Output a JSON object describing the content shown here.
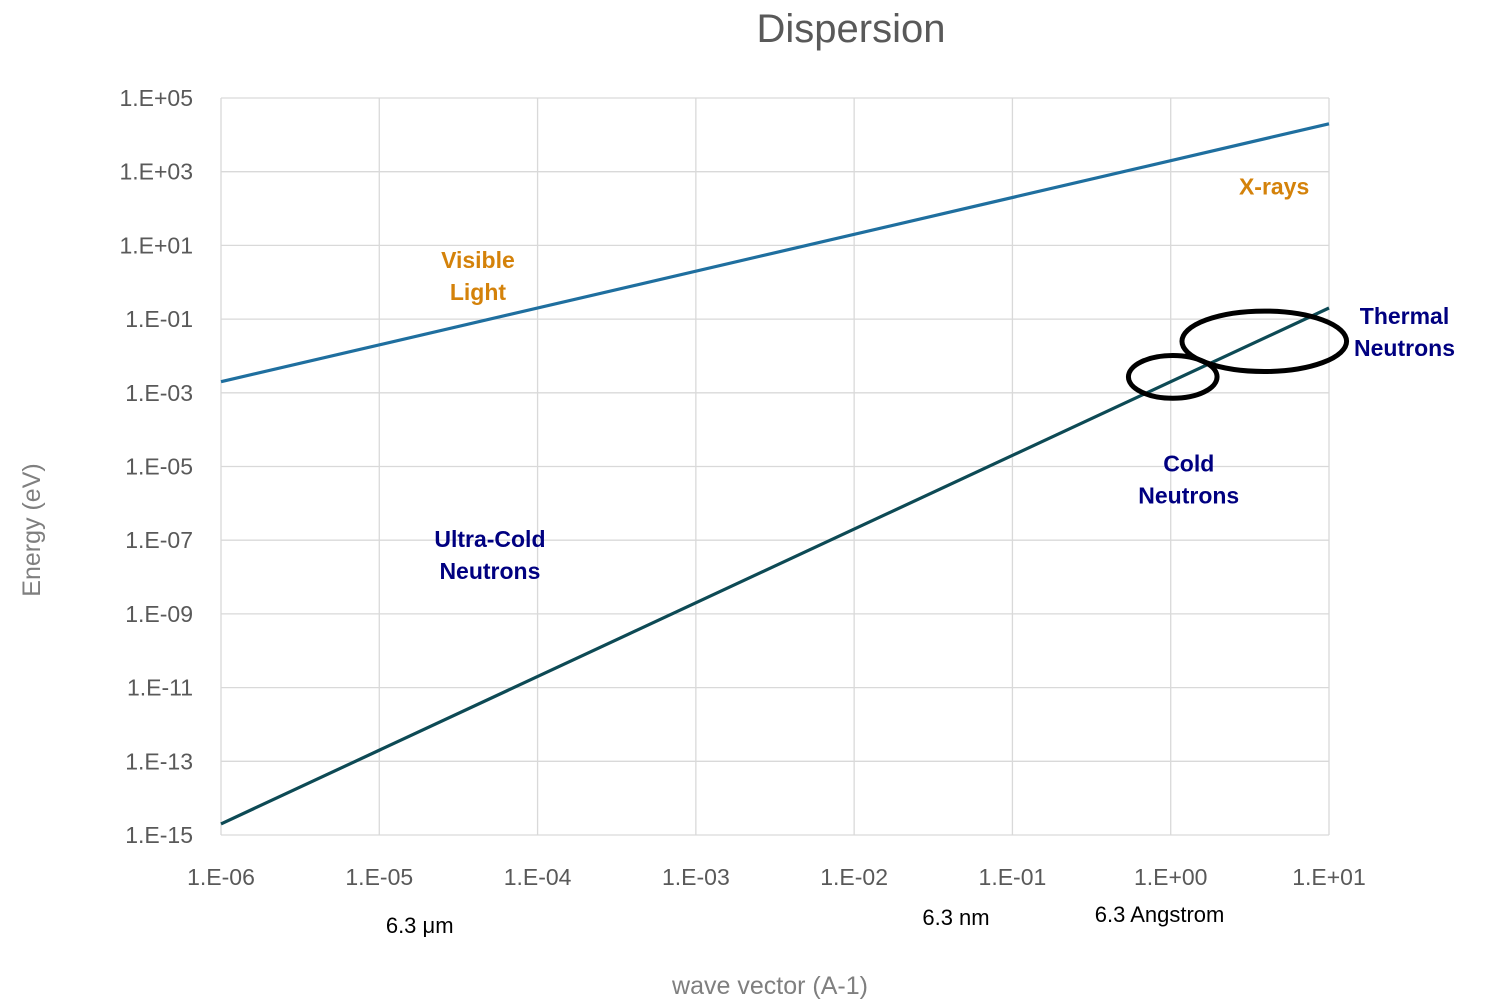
{
  "colors": {
    "gridline": "#d9d9d9",
    "photon_line": "#1f6f9f",
    "neutron_line": "#0d4a55",
    "orange_label": "#d4820a",
    "navy_label": "#000080",
    "circle_stroke": "#000000"
  },
  "chart_data": {
    "type": "line",
    "title": "Dispersion",
    "xlabel": "wave vector (A-1)",
    "ylabel": "Energy (eV)",
    "x_scale": "log",
    "y_scale": "log",
    "xlim": [
      1e-06,
      10
    ],
    "ylim": [
      1e-15,
      100000
    ],
    "grid": true,
    "x_ticks": [
      {
        "value": 1e-06,
        "label": "1.E-06"
      },
      {
        "value": 1e-05,
        "label": "1.E-05"
      },
      {
        "value": 0.0001,
        "label": "1.E-04"
      },
      {
        "value": 0.001,
        "label": "1.E-03"
      },
      {
        "value": 0.01,
        "label": "1.E-02"
      },
      {
        "value": 0.1,
        "label": "1.E-01"
      },
      {
        "value": 1,
        "label": "1.E+00"
      },
      {
        "value": 10,
        "label": "1.E+01"
      }
    ],
    "y_ticks": [
      {
        "value": 1e-15,
        "label": "1.E-15"
      },
      {
        "value": 1e-13,
        "label": "1.E-13"
      },
      {
        "value": 1e-11,
        "label": "1.E-11"
      },
      {
        "value": 1e-09,
        "label": "1.E-09"
      },
      {
        "value": 1e-07,
        "label": "1.E-07"
      },
      {
        "value": 1e-05,
        "label": "1.E-05"
      },
      {
        "value": 0.001,
        "label": "1.E-03"
      },
      {
        "value": 0.1,
        "label": "1.E-01"
      },
      {
        "value": 10,
        "label": "1.E+01"
      },
      {
        "value": 1000,
        "label": "1.E+03"
      },
      {
        "value": 100000,
        "label": "1.E+05"
      }
    ],
    "series": [
      {
        "key": "photon",
        "x": [
          1e-06,
          10
        ],
        "y": [
          0.002,
          20000
        ]
      },
      {
        "key": "neutron",
        "x": [
          1e-06,
          10
        ],
        "y": [
          2e-15,
          0.2
        ]
      }
    ],
    "annotations": [
      {
        "key": "visible-light",
        "lines": [
          "Visible",
          "Light"
        ],
        "x": 4.2e-05,
        "y": 1.5,
        "color_key": "orange_label"
      },
      {
        "key": "x-rays",
        "lines": [
          "X-rays"
        ],
        "x": 4.5,
        "y": 400,
        "color_key": "orange_label"
      },
      {
        "key": "thermal-neutrons",
        "lines": [
          "Thermal",
          "Neutrons"
        ],
        "x": 30,
        "y": 0.045,
        "color_key": "navy_label"
      },
      {
        "key": "cold-neutrons",
        "lines": [
          "Cold",
          "Neutrons"
        ],
        "x": 1.3,
        "y": 4.5e-06,
        "color_key": "navy_label"
      },
      {
        "key": "ultra-cold-neutrons",
        "lines": [
          "Ultra-Cold",
          "Neutrons"
        ],
        "x": 5e-05,
        "y": 4e-08,
        "color_key": "navy_label"
      }
    ],
    "circles": [
      {
        "key": "cold",
        "x": 1.03,
        "y": 0.0027,
        "rx_decades": 0.28,
        "ry_decades": 0.58
      },
      {
        "key": "thermal",
        "x": 3.9,
        "y": 0.025,
        "rx_decades": 0.52,
        "ry_decades": 0.82
      }
    ],
    "scale_notes": [
      {
        "key": "micron",
        "text": "6.3 μm",
        "x": 1.8e-05
      },
      {
        "key": "nanometer",
        "text": "6.3 nm",
        "x": 0.044
      },
      {
        "key": "angstrom",
        "text": "6.3 Angstrom",
        "x": 0.85
      }
    ]
  }
}
